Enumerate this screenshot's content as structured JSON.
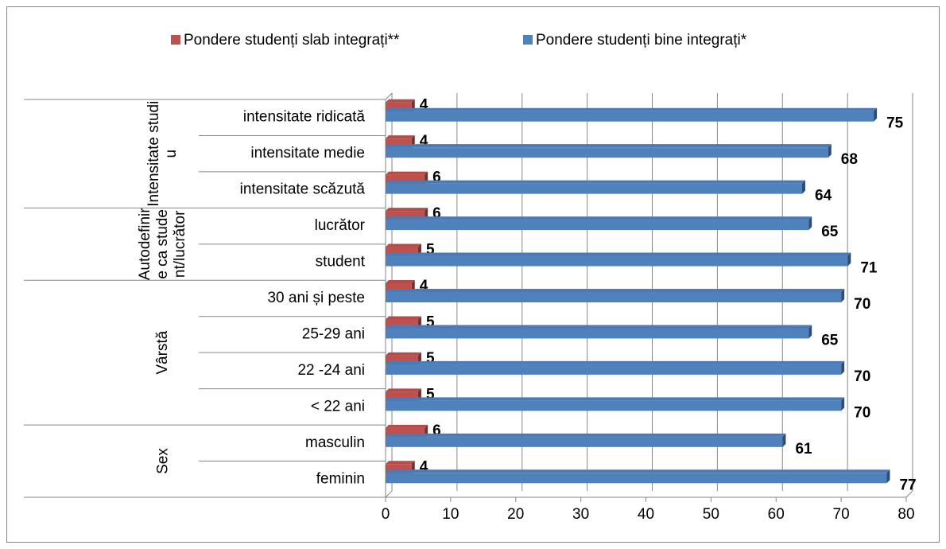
{
  "chart_data": {
    "type": "bar",
    "orientation": "horizontal",
    "groups": [
      {
        "name": "Intensitate studiu",
        "categories": [
          "intensitate ridicată",
          "intensitate medie",
          "intensitate scăzută"
        ]
      },
      {
        "name": "Autodefinire ca student/lucrător",
        "categories": [
          "lucrător",
          "student"
        ]
      },
      {
        "name": "Vârstă",
        "categories": [
          "30 ani și peste",
          "25-29 ani",
          "22 -24 ani",
          "< 22 ani"
        ]
      },
      {
        "name": "Sex",
        "categories": [
          "masculin",
          "feminin"
        ]
      }
    ],
    "series": [
      {
        "name": "Pondere studenți slab integrați**",
        "color": "#c0504d",
        "values": [
          4,
          4,
          6,
          6,
          5,
          4,
          5,
          5,
          5,
          6,
          4
        ]
      },
      {
        "name": "Pondere studenți bine integrați*",
        "color": "#4f81bd",
        "values": [
          75,
          68,
          64,
          65,
          71,
          70,
          65,
          70,
          70,
          61,
          77
        ]
      }
    ],
    "xlim": [
      0,
      80
    ],
    "xticks": [
      0,
      10,
      20,
      30,
      40,
      50,
      60,
      70,
      80
    ],
    "grid": true,
    "legend": "top"
  }
}
